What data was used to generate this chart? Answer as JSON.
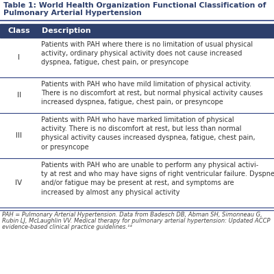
{
  "title_line1": "Table 1: World Health Organization Functional Classification of",
  "title_line2": "Pulmonary Arterial Hypertension",
  "header_col1": "Class",
  "header_col2": "Description",
  "header_bg": "#2d3f6b",
  "header_text_color": "#ffffff",
  "title_text_color": "#2d3f6b",
  "row_text_color": "#333333",
  "divider_color": "#2d4080",
  "bg_color": "#ffffff",
  "footnote_color": "#444444",
  "rows": [
    {
      "class": "I",
      "description": "Patients with PAH where there is no limitation of usual physical\nactivity, ordinary physical activity does not cause increased\ndyspnea, fatigue, chest pain, or presyncope"
    },
    {
      "class": "II",
      "description": "Patients with PAH who have mild limitation of physical activity.\nThere is no discomfort at rest, but normal physical activity causes\nincreased dyspnea, fatigue, chest pain, or presyncope"
    },
    {
      "class": "III",
      "description": "Patients with PAH who have marked limitation of physical\nactivity. There is no discomfort at rest, but less than normal\nphysical activity causes increased dyspnea, fatigue, chest pain,\nor presyncope"
    },
    {
      "class": "IV",
      "description": "Patients with PAH who are unable to perform any physical activi-\nty at rest and who may have signs of right ventricular failure. Dyspnea\nand/or fatigue may be present at rest, and symptoms are\nincreased by almost any physical activity"
    }
  ],
  "footnote_line1": "PAH = Pulmonary Arterial Hypertension. Data from Badesch DB, Abman SH, Simonneau G,",
  "footnote_line2": "Rubin LJ, McLaughlin VV. Medical therapy for pulmonary arterial hypertension: Updated ACCP",
  "footnote_line3": "evidence-based clinical practice guidelines.¹⁴",
  "title_fontsize": 7.8,
  "header_fontsize": 8.0,
  "body_fontsize": 7.0,
  "class_fontsize": 7.5,
  "footnote_fontsize": 6.0
}
